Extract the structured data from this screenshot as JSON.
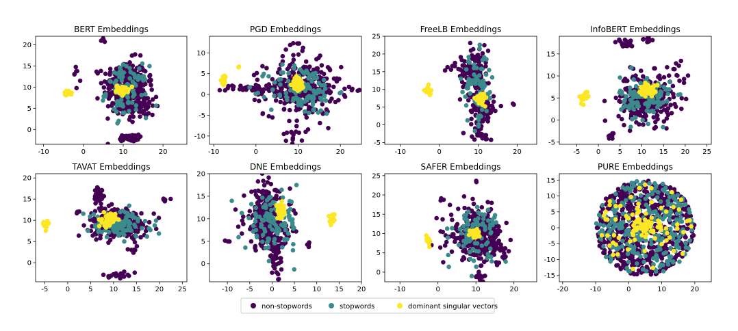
{
  "colors": {
    "non": "#440154",
    "stop": "#3b8b8c",
    "dom": "#fde725"
  },
  "legend": {
    "position": "bottom-center",
    "items": [
      {
        "label": "non-stopwords",
        "color": "#440154"
      },
      {
        "label": "stopwords",
        "color": "#3b8b8c"
      },
      {
        "label": "dominant singular vectors",
        "color": "#fde725"
      }
    ]
  },
  "chart_data": [
    {
      "type": "scatter",
      "title": "BERT Embeddings",
      "xlim": [
        -12,
        26
      ],
      "ylim": [
        -3.5,
        22
      ],
      "xticks": [
        -10,
        0,
        10,
        20
      ],
      "yticks": [
        0,
        5,
        10,
        15,
        20
      ],
      "clusters": [
        {
          "class": "non",
          "cx": 10.5,
          "cy": 10,
          "sx": 2.8,
          "sy": 3.2,
          "n": 260
        },
        {
          "class": "non",
          "cx": 14,
          "cy": 5.5,
          "sx": 2.2,
          "sy": 1.6,
          "n": 80
        },
        {
          "class": "non",
          "cx": 11.5,
          "cy": -2,
          "sx": 1.2,
          "sy": 0.4,
          "n": 40
        },
        {
          "class": "non",
          "cx": -2,
          "cy": 13.5,
          "sx": 0.3,
          "sy": 1.3,
          "n": 6
        },
        {
          "class": "non",
          "cx": 5,
          "cy": 21,
          "sx": 0.3,
          "sy": 0.2,
          "n": 4
        },
        {
          "class": "non",
          "cx": 16.5,
          "cy": 12,
          "sx": 0.5,
          "sy": 0.6,
          "n": 8
        },
        {
          "class": "stop",
          "cx": 11,
          "cy": 9,
          "sx": 2.6,
          "sy": 3,
          "n": 100
        },
        {
          "class": "dom",
          "cx": 9.8,
          "cy": 9.4,
          "sx": 0.8,
          "sy": 0.5,
          "n": 50
        },
        {
          "class": "dom",
          "cx": -4,
          "cy": 8.5,
          "sx": 0.5,
          "sy": 0.3,
          "n": 18
        }
      ]
    },
    {
      "type": "scatter",
      "title": "PGD Embeddings",
      "xlim": [
        -11,
        25
      ],
      "ylim": [
        -12,
        14
      ],
      "xticks": [
        -10,
        0,
        10,
        20
      ],
      "yticks": [
        -10,
        -5,
        0,
        5,
        10
      ],
      "clusters": [
        {
          "class": "non",
          "cx": 11,
          "cy": 1.5,
          "sx": 4.5,
          "sy": 3.2,
          "n": 280
        },
        {
          "class": "non",
          "cx": 0,
          "cy": 1.5,
          "sx": 3.5,
          "sy": 0.5,
          "n": 50
        },
        {
          "class": "non",
          "cx": 9,
          "cy": -9,
          "sx": 1.5,
          "sy": 2,
          "n": 15
        },
        {
          "class": "non",
          "cx": 10,
          "cy": 11,
          "sx": 1.5,
          "sy": 1.2,
          "n": 10
        },
        {
          "class": "non",
          "cx": 23,
          "cy": 1,
          "sx": 0.2,
          "sy": 0.2,
          "n": 2
        },
        {
          "class": "stop",
          "cx": 11,
          "cy": 1,
          "sx": 4,
          "sy": 3,
          "n": 120
        },
        {
          "class": "dom",
          "cx": 10,
          "cy": 2.5,
          "sx": 0.7,
          "sy": 0.9,
          "n": 55
        },
        {
          "class": "dom",
          "cx": -7.5,
          "cy": 3.5,
          "sx": 0.3,
          "sy": 0.6,
          "n": 15
        },
        {
          "class": "dom",
          "cx": -4,
          "cy": 6.5,
          "sx": 0.15,
          "sy": 0.15,
          "n": 2
        }
      ]
    },
    {
      "type": "scatter",
      "title": "FreeLB Embeddings",
      "xlim": [
        -14,
        25
      ],
      "ylim": [
        -5.5,
        25
      ],
      "xticks": [
        -10,
        0,
        10,
        20
      ],
      "yticks": [
        -5,
        0,
        5,
        10,
        15,
        20,
        25
      ],
      "clusters": [
        {
          "class": "non",
          "cx": 9,
          "cy": 15.5,
          "sx": 1.8,
          "sy": 3.5,
          "n": 120
        },
        {
          "class": "non",
          "cx": 11,
          "cy": 4,
          "sx": 1.5,
          "sy": 3,
          "n": 110
        },
        {
          "class": "non",
          "cx": 11,
          "cy": -3,
          "sx": 1,
          "sy": 1,
          "n": 12
        },
        {
          "class": "non",
          "cx": 3,
          "cy": 17,
          "sx": 1.5,
          "sy": 1.5,
          "n": 8
        },
        {
          "class": "non",
          "cx": 19,
          "cy": 6,
          "sx": 0.2,
          "sy": 0.2,
          "n": 2
        },
        {
          "class": "stop",
          "cx": 10,
          "cy": 10,
          "sx": 2,
          "sy": 5,
          "n": 80
        },
        {
          "class": "dom",
          "cx": 10.5,
          "cy": 7.5,
          "sx": 0.6,
          "sy": 0.8,
          "n": 40
        },
        {
          "class": "dom",
          "cx": -3,
          "cy": 9.5,
          "sx": 0.4,
          "sy": 0.7,
          "n": 15
        }
      ]
    },
    {
      "type": "scatter",
      "title": "InfoBERT Embeddings",
      "xlim": [
        -9,
        26
      ],
      "ylim": [
        -5.5,
        19
      ],
      "xticks": [
        -5,
        0,
        5,
        10,
        15,
        20,
        25
      ],
      "yticks": [
        -5,
        0,
        5,
        10,
        15
      ],
      "clusters": [
        {
          "class": "non",
          "cx": 11,
          "cy": 5,
          "sx": 3.2,
          "sy": 2.8,
          "n": 260
        },
        {
          "class": "non",
          "cx": 6,
          "cy": 17.5,
          "sx": 1,
          "sy": 0.5,
          "n": 20
        },
        {
          "class": "non",
          "cx": 11.5,
          "cy": 18,
          "sx": 0.6,
          "sy": 0.3,
          "n": 8
        },
        {
          "class": "non",
          "cx": 3,
          "cy": -3.5,
          "sx": 0.4,
          "sy": 0.4,
          "n": 10
        },
        {
          "class": "non",
          "cx": 18,
          "cy": 11,
          "sx": 1.2,
          "sy": 1.5,
          "n": 12
        },
        {
          "class": "stop",
          "cx": 11,
          "cy": 5,
          "sx": 3,
          "sy": 2.5,
          "n": 120
        },
        {
          "class": "dom",
          "cx": 11.3,
          "cy": 7,
          "sx": 0.8,
          "sy": 0.8,
          "n": 55
        },
        {
          "class": "dom",
          "cx": -3.5,
          "cy": 5.2,
          "sx": 0.6,
          "sy": 0.6,
          "n": 14
        }
      ]
    },
    {
      "type": "scatter",
      "title": "TAVAT Embeddings",
      "xlim": [
        -7,
        26
      ],
      "ylim": [
        -4.5,
        21
      ],
      "xticks": [
        -5,
        0,
        5,
        10,
        15,
        20,
        25
      ],
      "yticks": [
        0,
        5,
        10,
        15,
        20
      ],
      "clusters": [
        {
          "class": "non",
          "cx": 11,
          "cy": 9.5,
          "sx": 3.2,
          "sy": 1.8,
          "n": 260
        },
        {
          "class": "non",
          "cx": 7,
          "cy": 16,
          "sx": 0.6,
          "sy": 1.3,
          "n": 30
        },
        {
          "class": "non",
          "cx": 11,
          "cy": -3,
          "sx": 1,
          "sy": 0.3,
          "n": 25
        },
        {
          "class": "non",
          "cx": 21.5,
          "cy": 15,
          "sx": 0.5,
          "sy": 0.2,
          "n": 6
        },
        {
          "class": "non",
          "cx": 2,
          "cy": 12,
          "sx": 0.4,
          "sy": 0.3,
          "n": 4
        },
        {
          "class": "non",
          "cx": 14,
          "cy": 3,
          "sx": 0.8,
          "sy": 0.4,
          "n": 6
        },
        {
          "class": "stop",
          "cx": 11,
          "cy": 9,
          "sx": 3.5,
          "sy": 1.6,
          "n": 120
        },
        {
          "class": "dom",
          "cx": 9,
          "cy": 10,
          "sx": 0.7,
          "sy": 0.8,
          "n": 50
        },
        {
          "class": "dom",
          "cx": -4.8,
          "cy": 9,
          "sx": 0.4,
          "sy": 0.6,
          "n": 14
        }
      ]
    },
    {
      "type": "scatter",
      "title": "DNE Embeddings",
      "xlim": [
        -14,
        20
      ],
      "ylim": [
        -4,
        20
      ],
      "xticks": [
        -10,
        -5,
        0,
        5,
        10,
        15,
        20
      ],
      "yticks": [
        0,
        5,
        10,
        15,
        20
      ],
      "clusters": [
        {
          "class": "non",
          "cx": -1,
          "cy": 9.5,
          "sx": 2.6,
          "sy": 3.2,
          "n": 240
        },
        {
          "class": "non",
          "cx": 1,
          "cy": 2,
          "sx": 0.9,
          "sy": 2.5,
          "n": 50
        },
        {
          "class": "non",
          "cx": -2,
          "cy": 16,
          "sx": 1.2,
          "sy": 2,
          "n": 30
        },
        {
          "class": "non",
          "cx": -10,
          "cy": 5,
          "sx": 0.5,
          "sy": 0.5,
          "n": 3
        },
        {
          "class": "non",
          "cx": 8,
          "cy": 4,
          "sx": 0.4,
          "sy": 0.4,
          "n": 4
        },
        {
          "class": "stop",
          "cx": 0,
          "cy": 9,
          "sx": 3,
          "sy": 3,
          "n": 110
        },
        {
          "class": "dom",
          "cx": 2,
          "cy": 11.5,
          "sx": 0.6,
          "sy": 0.8,
          "n": 45
        },
        {
          "class": "dom",
          "cx": 13.5,
          "cy": 10,
          "sx": 0.3,
          "sy": 0.6,
          "n": 12
        }
      ]
    },
    {
      "type": "scatter",
      "title": "SAFER Embeddings",
      "xlim": [
        -14,
        26
      ],
      "ylim": [
        -2.5,
        25.5
      ],
      "xticks": [
        -10,
        0,
        10,
        20
      ],
      "yticks": [
        0,
        5,
        10,
        15,
        20,
        25
      ],
      "clusters": [
        {
          "class": "non",
          "cx": 10,
          "cy": 10,
          "sx": 3.5,
          "sy": 3.2,
          "n": 240
        },
        {
          "class": "non",
          "cx": 14,
          "cy": 6,
          "sx": 2,
          "sy": 1.5,
          "n": 60
        },
        {
          "class": "non",
          "cx": 11,
          "cy": -1,
          "sx": 0.8,
          "sy": 0.4,
          "n": 15
        },
        {
          "class": "non",
          "cx": 10,
          "cy": 23.5,
          "sx": 0.2,
          "sy": 0.2,
          "n": 2
        },
        {
          "class": "non",
          "cx": 1,
          "cy": 19,
          "sx": 0.3,
          "sy": 0.3,
          "n": 3
        },
        {
          "class": "stop",
          "cx": 10,
          "cy": 10,
          "sx": 3,
          "sy": 3.5,
          "n": 90
        },
        {
          "class": "dom",
          "cx": 9.5,
          "cy": 10,
          "sx": 0.7,
          "sy": 0.6,
          "n": 40
        },
        {
          "class": "dom",
          "cx": -2.5,
          "cy": 8.5,
          "sx": 0.3,
          "sy": 0.6,
          "n": 12
        }
      ]
    },
    {
      "type": "scatter",
      "title": "PURE Embeddings",
      "xlim": [
        -21,
        25
      ],
      "ylim": [
        -17,
        17
      ],
      "xticks": [
        -20,
        -10,
        0,
        10,
        20
      ],
      "yticks": [
        -15,
        -10,
        -5,
        0,
        5,
        10,
        15
      ],
      "clusters": [
        {
          "class": "non",
          "disk": true,
          "cx": 5,
          "cy": 0,
          "r": 15,
          "n": 620
        },
        {
          "class": "stop",
          "disk": true,
          "cx": 5,
          "cy": 0,
          "r": 15,
          "n": 280
        },
        {
          "class": "dom",
          "disk": true,
          "cx": 5,
          "cy": 0,
          "r": 14,
          "n": 70
        },
        {
          "class": "dom",
          "cx": 5,
          "cy": 0,
          "sx": 2.5,
          "sy": 1.5,
          "n": 40
        }
      ]
    }
  ]
}
